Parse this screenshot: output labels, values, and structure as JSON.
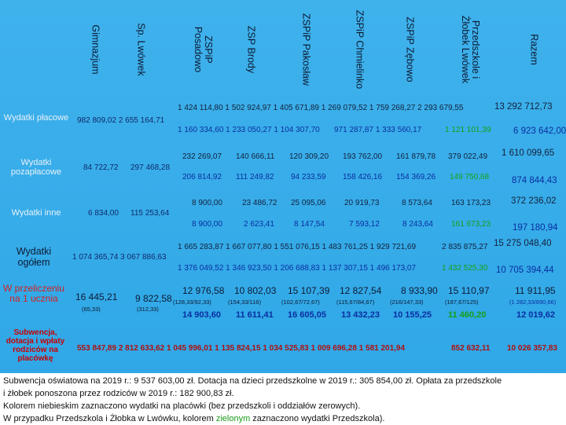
{
  "columns": [
    "Razem",
    "Przedszkole i\nŻłobek Lwówek",
    "ZSPiP Zębowo",
    "ZSPiP Chmielinko",
    "ZSPiP Pakosław",
    "ZSP Brody",
    "ZSPiP\nPosadowo",
    "Sp. Lwówek",
    "Gimnazjum"
  ],
  "rows": {
    "placowe": "Wydatki płacowe",
    "pozaplacowe": "Wydatki pozapłacowe",
    "inne": "Wydatki inne",
    "ogolem": "Wydatki ogółem",
    "przelicz": "W przeliczeniu na 1 ucznia",
    "subwencja": "Subwencja, dotacja i wpłaty rodziców na placówkę"
  },
  "values": {
    "placowe": {
      "razem_top": "13 292 712,73",
      "razem_bot": "6 923 642,00",
      "top": "1 424 114,80 1 502 924,97 1 405 671,89 1 269 079,52 1 759 268,27 2 293 679,55",
      "bot": "1 160 334,60 1 233 050,27 1 104 307,70",
      "bot_b": "971 287,87 1 333 560,17",
      "bot_g": "1 121 101,39",
      "left": "982 809,02 2 655 164,71"
    },
    "pozaplacowe": {
      "razem_top": "1 610 099,65",
      "razem_bot": "874 844,43",
      "top": [
        "232 269,07",
        "140 666,11",
        "120 309,20",
        "193 762,00",
        "161 879,78",
        "379 022,49"
      ],
      "bot": [
        "206 814,92",
        "111 249,82",
        "94 233,59",
        "158 426,16",
        "154 369,26"
      ],
      "bot_g": "149 750,68",
      "left1": "84 722,72",
      "left2": "297 468,28"
    },
    "inne": {
      "razem_top": "372 236,02",
      "razem_bot": "197 180,94",
      "top": [
        "8 900,00",
        "23 486,72",
        "25 095,06",
        "20 919,73",
        "8 573,64",
        "163 173,23"
      ],
      "bot": [
        "8 900,00",
        "2 623,41",
        "8 147,54",
        "7 593,12",
        "8 243,64"
      ],
      "bot_g": "161 673,23",
      "left1": "6 834,00",
      "left2": "115 253,64"
    },
    "ogolem": {
      "razem_top": "15 275 048,40",
      "razem_bot": "10 705 394,44",
      "top": "1 665 283,87 1 667 077,80 1 551 076,15 1 483 761,25 1 929 721,69",
      "top_end": "2 835 875,27",
      "bot": "1 376 049,52 1 346 923,50 1 206 688,83 1 137 307,15 1 496 173,07",
      "bot_g": "1 432 525,30",
      "left": "1 074 365,74 3 067 886,63"
    },
    "przelicz": {
      "razem_top": "11 911,95",
      "razem_sub": "(1 282,33/890,66)",
      "razem_bot": "12 019,62",
      "top": [
        "12 976,58",
        "10 802,03",
        "15 107,39",
        "12 827,54",
        "8 933,90",
        "15 110,97"
      ],
      "sub": [
        "(128,33/92,33)",
        "(154,33/116)",
        "(102,67/72,67)",
        "(115,67/84,67)",
        "(216/147,33)",
        "(187,67/125)"
      ],
      "bot": [
        "14 903,60",
        "11 611,41",
        "16 605,05",
        "13 432,23",
        "10 155,25"
      ],
      "bot_g": "11 460,20",
      "left1": "16 445,21",
      "left1_sub": "(65,33)",
      "left2": "9 822,58",
      "left2_sub": "(312,33)"
    },
    "subwencja": {
      "line": "553 847,89 2 812 633,62 1 045 996,01 1 135 824,15 1 034 525,83 1 009 696,28 1 581 201,94",
      "p": "852 632,11",
      "razem": "10 026 357,83"
    }
  },
  "footnote": {
    "l1": "Subwencja oświatowa na 2019 r.: 9 537 603,00 zł.  Dotacja na dzieci przedszkolne w 2019 r.: 305 854,00 zł. Opłata za przedszkole",
    "l2": "i żłobek ponoszona przez rodziców w 2019 r.: 182 900,83 zł.",
    "l3": "Kolorem niebieskim zaznaczono wydatki na placówki (bez przedszkoli i oddziałów zerowych).",
    "l4a": "W przypadku Przedszkola i Żłobka w Lwówku, kolorem ",
    "l4b": "zielonym",
    "l4c": " zaznaczono wydatki Przedszkola)."
  },
  "colors": {
    "background": "#2ea6e6",
    "blue": "#0a2ea0",
    "green": "#16a016",
    "red": "#b01010"
  }
}
